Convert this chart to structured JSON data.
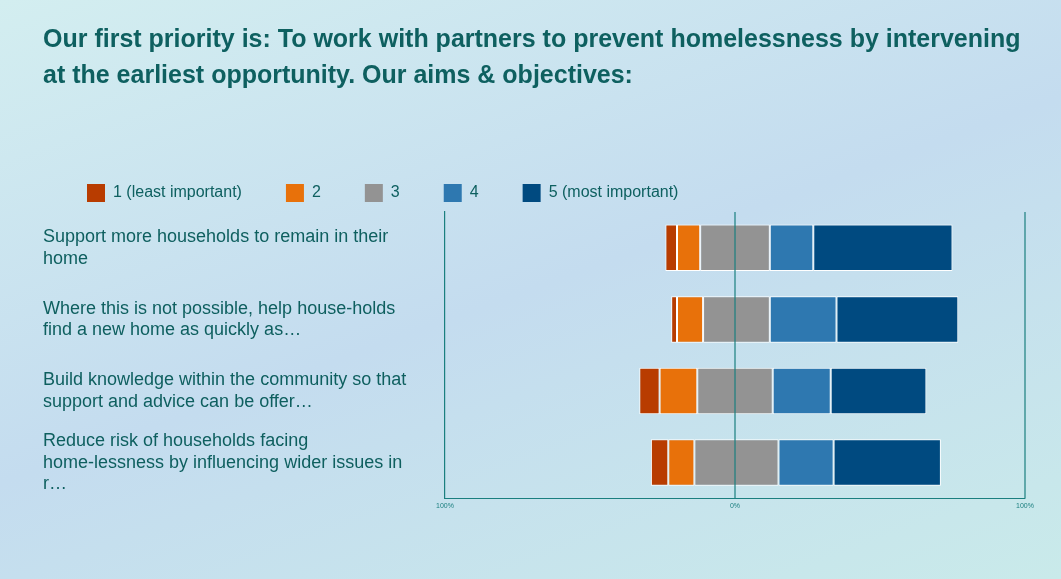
{
  "chart_data": {
    "type": "bar",
    "orientation": "horizontal",
    "title": "Our first priority is: To work with partners to prevent homelessness by intervening at the earliest opportunity.  Our aims & objectives:",
    "categories": [
      "Support more households to remain in their home",
      "Where this is not possible, help house-holds find a new home as quickly as…",
      "Build knowledge within the community so that support and advice can be offer…",
      "Reduce risk of households facing home-lessness by influencing wider issues in r…"
    ],
    "series": [
      {
        "name": "1 (least important)",
        "color": "#b83c00",
        "base": [
          -24,
          -22,
          -33,
          -29
        ],
        "values": [
          4,
          2,
          7,
          6
        ]
      },
      {
        "name": "2",
        "color": "#e8710a",
        "base": [
          -20,
          -20,
          -26,
          -23
        ],
        "values": [
          8,
          9,
          13,
          9
        ]
      },
      {
        "name": "3",
        "color": "#939393",
        "base": [
          -12,
          -11,
          -13,
          -14
        ],
        "values": [
          24,
          23,
          26,
          29
        ]
      },
      {
        "name": "4",
        "color": "#2e78b0",
        "base": [
          12,
          12,
          13,
          15
        ],
        "values": [
          15,
          23,
          20,
          19
        ]
      },
      {
        "name": "5 (most important)",
        "color": "#004a80",
        "base": [
          27,
          35,
          33,
          34
        ],
        "values": [
          48,
          42,
          33,
          37
        ]
      }
    ],
    "xlim": [
      -100,
      100
    ],
    "xticks": [
      {
        "value": -100,
        "label": "100%"
      },
      {
        "value": 0,
        "label": "0%"
      },
      {
        "value": 100,
        "label": "100%"
      }
    ],
    "ref_lines": [
      {
        "axis": "x",
        "value": 0,
        "color": "#1a7f7f"
      }
    ],
    "legend": "top left"
  }
}
